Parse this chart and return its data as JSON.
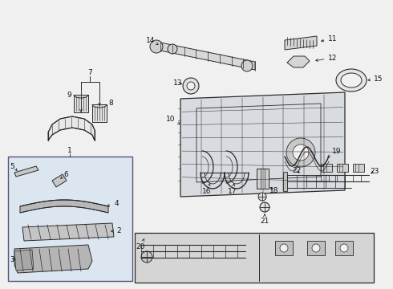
{
  "bg_color": "#f0f0f0",
  "line_color": "#2a2a2a",
  "label_color": "#111111",
  "inset_bg": "#dce6f0",
  "inset_border": "#555577",
  "fs": 6.5
}
